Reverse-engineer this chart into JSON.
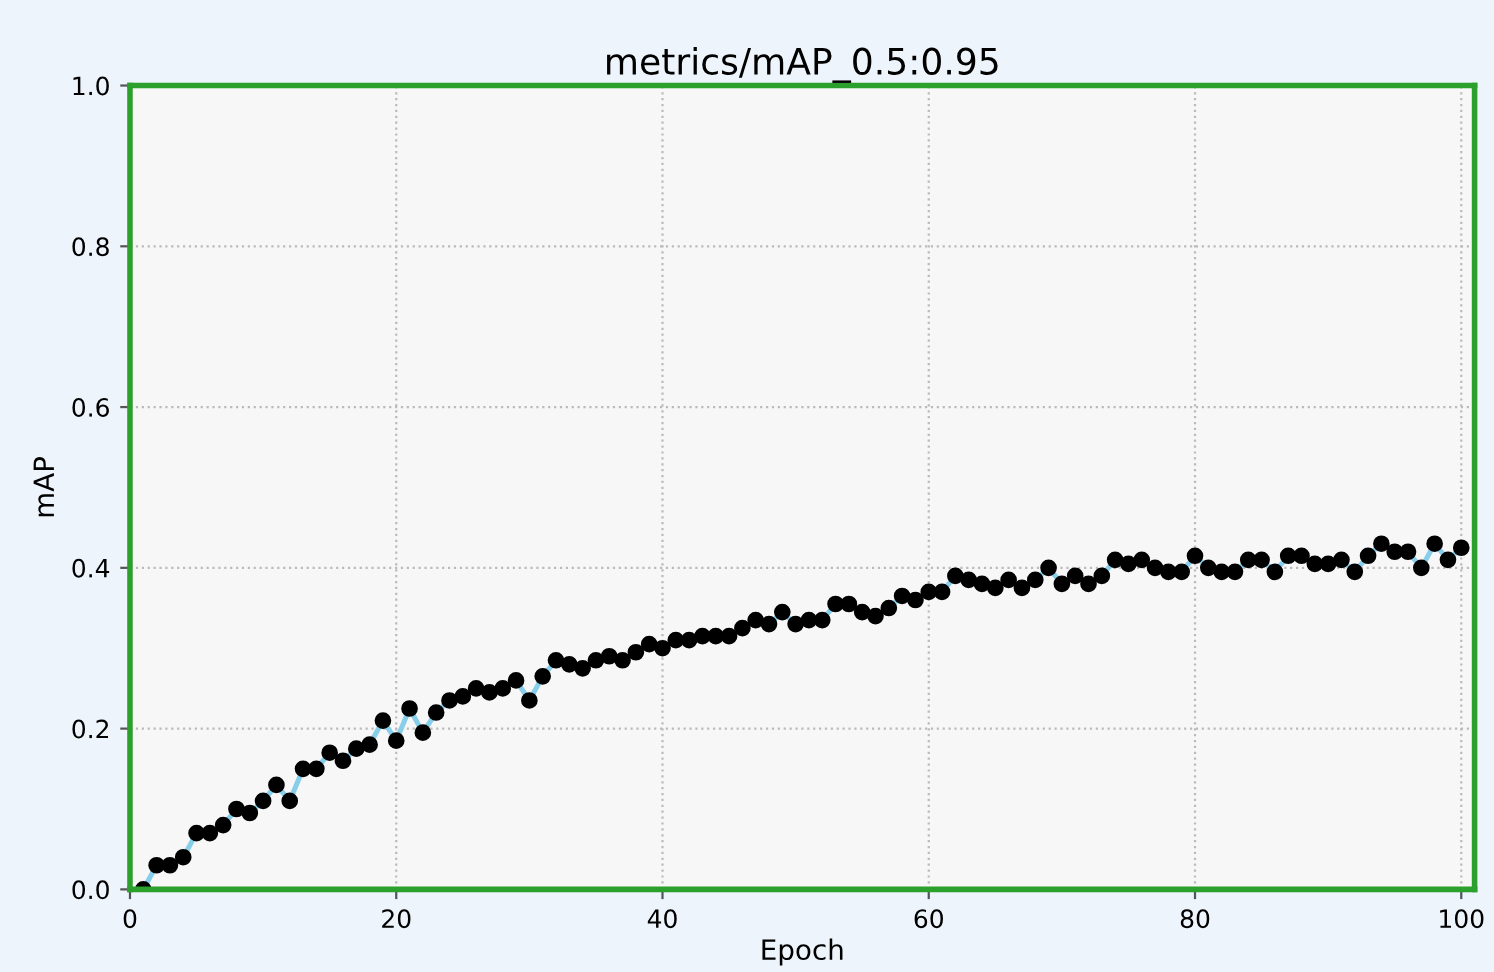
{
  "chart_data": {
    "type": "line",
    "title": "metrics/mAP_0.5:0.95",
    "xlabel": "Epoch",
    "ylabel": "mAP",
    "x": [
      1,
      2,
      3,
      4,
      5,
      6,
      7,
      8,
      9,
      10,
      11,
      12,
      13,
      14,
      15,
      16,
      17,
      18,
      19,
      20,
      21,
      22,
      23,
      24,
      25,
      26,
      27,
      28,
      29,
      30,
      31,
      32,
      33,
      34,
      35,
      36,
      37,
      38,
      39,
      40,
      41,
      42,
      43,
      44,
      45,
      46,
      47,
      48,
      49,
      50,
      51,
      52,
      53,
      54,
      55,
      56,
      57,
      58,
      59,
      60,
      61,
      62,
      63,
      64,
      65,
      66,
      67,
      68,
      69,
      70,
      71,
      72,
      73,
      74,
      75,
      76,
      77,
      78,
      79,
      80,
      81,
      82,
      83,
      84,
      85,
      86,
      87,
      88,
      89,
      90,
      91,
      92,
      93,
      94,
      95,
      96,
      97,
      98,
      99,
      100
    ],
    "series": [
      {
        "color": "#87ceeb",
        "values": [
          0.0,
          0.03,
          0.03,
          0.04,
          0.07,
          0.07,
          0.08,
          0.1,
          0.095,
          0.11,
          0.13,
          0.11,
          0.15,
          0.15,
          0.17,
          0.16,
          0.175,
          0.18,
          0.21,
          0.185,
          0.225,
          0.195,
          0.22,
          0.235,
          0.24,
          0.25,
          0.245,
          0.25,
          0.26,
          0.235,
          0.265,
          0.285,
          0.28,
          0.275,
          0.285,
          0.29,
          0.285,
          0.295,
          0.305,
          0.3,
          0.31,
          0.31,
          0.315,
          0.315,
          0.315,
          0.325,
          0.335,
          0.33,
          0.345,
          0.33,
          0.335,
          0.335,
          0.355,
          0.355,
          0.345,
          0.34,
          0.35,
          0.365,
          0.36,
          0.37,
          0.37,
          0.39,
          0.385,
          0.38,
          0.375,
          0.385,
          0.375,
          0.385,
          0.4,
          0.38,
          0.39,
          0.38,
          0.39,
          0.41,
          0.405,
          0.41,
          0.4,
          0.395,
          0.395,
          0.415,
          0.4,
          0.395,
          0.395,
          0.41,
          0.41,
          0.395,
          0.415,
          0.415,
          0.405,
          0.405,
          0.41,
          0.395,
          0.415,
          0.43,
          0.42,
          0.42,
          0.4,
          0.43,
          0.41,
          0.425
        ]
      }
    ],
    "xlim": [
      0,
      101
    ],
    "ylim": [
      0,
      1
    ],
    "xticks": [
      0,
      20,
      40,
      60,
      80,
      100
    ],
    "yticks": [
      {
        "value": 0,
        "label": "0.0"
      },
      0.2,
      0.4,
      0.6,
      0.8,
      {
        "value": 1,
        "label": "1.0"
      }
    ],
    "grid": true,
    "marker": "circle",
    "line_style": "solid",
    "legend": false
  }
}
